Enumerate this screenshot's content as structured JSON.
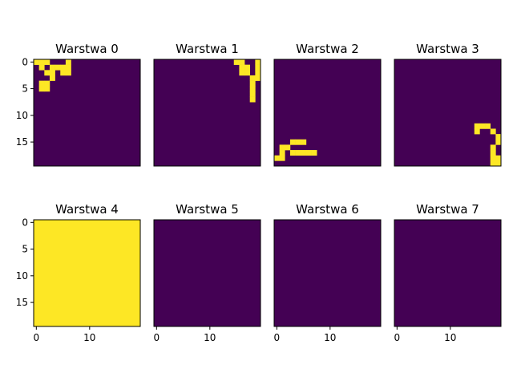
{
  "colors": {
    "off": "#440154",
    "on": "#fde725",
    "frame": "#000000",
    "background": "#ffffff"
  },
  "chart_data": {
    "type": "heatmap",
    "colormap": "viridis",
    "grid_size": [
      20,
      20
    ],
    "layout": "2x4",
    "x_ticks": [
      0,
      10
    ],
    "y_ticks": [
      0,
      5,
      10,
      15
    ],
    "xlim": [
      -0.5,
      19.5
    ],
    "ylim": [
      19.5,
      -0.5
    ],
    "panels": [
      {
        "title": "Warstwa 0",
        "cells": [
          [
            0,
            0
          ],
          [
            0,
            1
          ],
          [
            0,
            2
          ],
          [
            1,
            1
          ],
          [
            1,
            3
          ],
          [
            2,
            2
          ],
          [
            2,
            3
          ],
          [
            2,
            5
          ],
          [
            3,
            3
          ],
          [
            4,
            1
          ],
          [
            4,
            2
          ],
          [
            5,
            1
          ],
          [
            5,
            2
          ],
          [
            0,
            6
          ],
          [
            1,
            6
          ],
          [
            2,
            6
          ],
          [
            1,
            4
          ],
          [
            1,
            5
          ]
        ]
      },
      {
        "title": "Warstwa 1",
        "cells": [
          [
            0,
            15
          ],
          [
            0,
            16
          ],
          [
            1,
            16
          ],
          [
            2,
            17
          ],
          [
            0,
            19
          ],
          [
            1,
            19
          ],
          [
            2,
            19
          ],
          [
            3,
            19
          ],
          [
            2,
            16
          ],
          [
            1,
            17
          ],
          [
            3,
            18
          ],
          [
            4,
            18
          ],
          [
            5,
            18
          ],
          [
            6,
            18
          ],
          [
            7,
            18
          ]
        ]
      },
      {
        "title": "Warstwa 2",
        "cells": [
          [
            15,
            3
          ],
          [
            15,
            4
          ],
          [
            15,
            5
          ],
          [
            16,
            1
          ],
          [
            16,
            2
          ],
          [
            17,
            1
          ],
          [
            17,
            3
          ],
          [
            17,
            4
          ],
          [
            17,
            5
          ],
          [
            17,
            6
          ],
          [
            17,
            7
          ],
          [
            18,
            0
          ],
          [
            18,
            1
          ]
        ]
      },
      {
        "title": "Warstwa 3",
        "cells": [
          [
            12,
            15
          ],
          [
            12,
            16
          ],
          [
            12,
            17
          ],
          [
            13,
            15
          ],
          [
            13,
            18
          ],
          [
            14,
            19
          ],
          [
            15,
            19
          ],
          [
            16,
            18
          ],
          [
            17,
            18
          ],
          [
            18,
            18
          ],
          [
            18,
            19
          ],
          [
            19,
            18
          ],
          [
            19,
            19
          ]
        ]
      },
      {
        "title": "Warstwa 4",
        "fill": "all"
      },
      {
        "title": "Warstwa 5",
        "cells": []
      },
      {
        "title": "Warstwa 6",
        "cells": []
      },
      {
        "title": "Warstwa 7",
        "cells": []
      }
    ]
  }
}
